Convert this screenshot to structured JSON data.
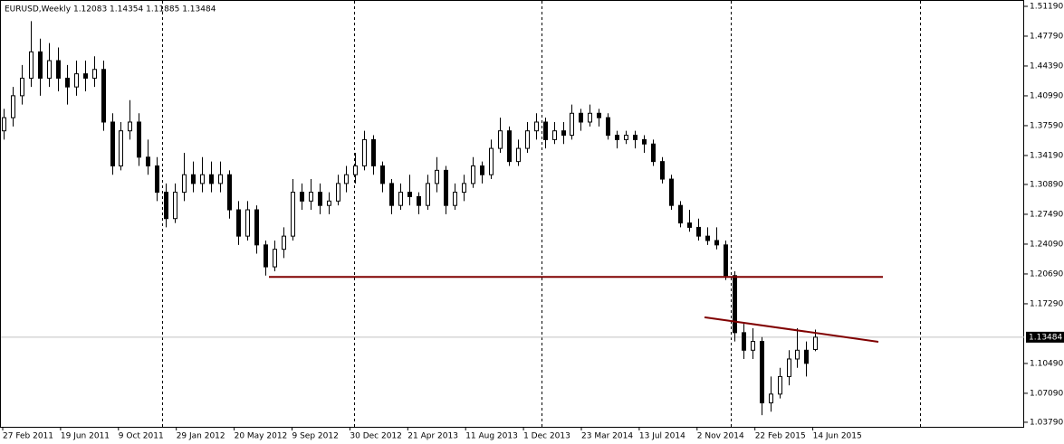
{
  "chart_data": {
    "type": "candlestick",
    "title": "EURUSD,Weekly  1.12083 1.14354 1.11885 1.13484",
    "ylim": [
      1.0327,
      1.5191
    ],
    "yticks": [
      {
        "value": 1.5119,
        "label": "1.51190"
      },
      {
        "value": 1.4779,
        "label": "1.47790"
      },
      {
        "value": 1.4439,
        "label": "1.44390"
      },
      {
        "value": 1.4099,
        "label": "1.40990"
      },
      {
        "value": 1.3759,
        "label": "1.37590"
      },
      {
        "value": 1.3419,
        "label": "1.34190"
      },
      {
        "value": 1.3089,
        "label": "1.30890"
      },
      {
        "value": 1.2749,
        "label": "1.27490"
      },
      {
        "value": 1.2409,
        "label": "1.24090"
      },
      {
        "value": 1.2069,
        "label": "1.20690"
      },
      {
        "value": 1.1729,
        "label": "1.17290"
      },
      {
        "value": 1.1049,
        "label": "1.10490"
      },
      {
        "value": 1.0709,
        "label": "1.07090"
      },
      {
        "value": 1.0379,
        "label": "1.03790"
      }
    ],
    "current_price": 1.13484,
    "xlabels": [
      "27 Feb 2011",
      "19 Jun 2011",
      "9 Oct 2011",
      "29 Jan 2012",
      "20 May 2012",
      "9 Sep 2012",
      "30 Dec 2012",
      "21 Apr 2013",
      "11 Aug 2013",
      "1 Dec 2013",
      "23 Mar 2014",
      "13 Jul 2014",
      "2 Nov 2014",
      "22 Feb 2015",
      "14 Jun 2015"
    ],
    "trendlines": [
      [
        1.2035,
        1.2035
      ],
      [
        1.1575,
        1.1296
      ]
    ],
    "trendline_color": "#800000",
    "candles": [
      [
        1.37,
        1.395,
        1.36,
        1.385
      ],
      [
        1.385,
        1.42,
        1.375,
        1.41
      ],
      [
        1.41,
        1.445,
        1.4,
        1.43
      ],
      [
        1.43,
        1.495,
        1.42,
        1.46
      ],
      [
        1.46,
        1.475,
        1.41,
        1.43
      ],
      [
        1.43,
        1.47,
        1.42,
        1.45
      ],
      [
        1.45,
        1.465,
        1.415,
        1.43
      ],
      [
        1.43,
        1.445,
        1.4,
        1.42
      ],
      [
        1.42,
        1.45,
        1.41,
        1.435
      ],
      [
        1.435,
        1.45,
        1.415,
        1.43
      ],
      [
        1.43,
        1.455,
        1.42,
        1.44
      ],
      [
        1.44,
        1.45,
        1.37,
        1.38
      ],
      [
        1.38,
        1.39,
        1.32,
        1.33
      ],
      [
        1.33,
        1.38,
        1.325,
        1.37
      ],
      [
        1.37,
        1.405,
        1.36,
        1.38
      ],
      [
        1.38,
        1.39,
        1.33,
        1.34
      ],
      [
        1.34,
        1.36,
        1.32,
        1.33
      ],
      [
        1.33,
        1.34,
        1.29,
        1.3
      ],
      [
        1.3,
        1.31,
        1.26,
        1.27
      ],
      [
        1.27,
        1.31,
        1.265,
        1.3
      ],
      [
        1.3,
        1.345,
        1.29,
        1.32
      ],
      [
        1.32,
        1.335,
        1.3,
        1.31
      ],
      [
        1.31,
        1.34,
        1.3,
        1.32
      ],
      [
        1.32,
        1.335,
        1.3,
        1.31
      ],
      [
        1.31,
        1.335,
        1.3,
        1.32
      ],
      [
        1.32,
        1.325,
        1.27,
        1.28
      ],
      [
        1.28,
        1.29,
        1.24,
        1.25
      ],
      [
        1.25,
        1.29,
        1.245,
        1.28
      ],
      [
        1.28,
        1.285,
        1.23,
        1.24
      ],
      [
        1.24,
        1.245,
        1.205,
        1.215
      ],
      [
        1.215,
        1.245,
        1.21,
        1.235
      ],
      [
        1.235,
        1.26,
        1.225,
        1.25
      ],
      [
        1.25,
        1.315,
        1.245,
        1.3
      ],
      [
        1.3,
        1.31,
        1.28,
        1.29
      ],
      [
        1.29,
        1.315,
        1.28,
        1.3
      ],
      [
        1.3,
        1.31,
        1.275,
        1.285
      ],
      [
        1.285,
        1.3,
        1.275,
        1.29
      ],
      [
        1.29,
        1.32,
        1.285,
        1.31
      ],
      [
        1.31,
        1.33,
        1.3,
        1.32
      ],
      [
        1.32,
        1.345,
        1.31,
        1.33
      ],
      [
        1.33,
        1.37,
        1.325,
        1.36
      ],
      [
        1.36,
        1.365,
        1.32,
        1.33
      ],
      [
        1.33,
        1.335,
        1.3,
        1.31
      ],
      [
        1.31,
        1.315,
        1.275,
        1.285
      ],
      [
        1.285,
        1.31,
        1.28,
        1.3
      ],
      [
        1.3,
        1.32,
        1.285,
        1.295
      ],
      [
        1.295,
        1.3,
        1.275,
        1.285
      ],
      [
        1.285,
        1.32,
        1.28,
        1.31
      ],
      [
        1.31,
        1.34,
        1.3,
        1.325
      ],
      [
        1.325,
        1.33,
        1.275,
        1.285
      ],
      [
        1.285,
        1.31,
        1.28,
        1.3
      ],
      [
        1.3,
        1.32,
        1.29,
        1.31
      ],
      [
        1.31,
        1.34,
        1.305,
        1.33
      ],
      [
        1.33,
        1.335,
        1.31,
        1.32
      ],
      [
        1.32,
        1.36,
        1.315,
        1.35
      ],
      [
        1.35,
        1.385,
        1.345,
        1.37
      ],
      [
        1.37,
        1.375,
        1.33,
        1.335
      ],
      [
        1.335,
        1.36,
        1.33,
        1.35
      ],
      [
        1.35,
        1.38,
        1.345,
        1.37
      ],
      [
        1.37,
        1.39,
        1.36,
        1.38
      ],
      [
        1.38,
        1.385,
        1.35,
        1.36
      ],
      [
        1.36,
        1.38,
        1.355,
        1.37
      ],
      [
        1.37,
        1.38,
        1.355,
        1.365
      ],
      [
        1.365,
        1.4,
        1.36,
        1.39
      ],
      [
        1.39,
        1.395,
        1.37,
        1.38
      ],
      [
        1.38,
        1.4,
        1.375,
        1.39
      ],
      [
        1.39,
        1.395,
        1.375,
        1.385
      ],
      [
        1.385,
        1.39,
        1.36,
        1.365
      ],
      [
        1.365,
        1.37,
        1.35,
        1.36
      ],
      [
        1.36,
        1.37,
        1.355,
        1.365
      ],
      [
        1.365,
        1.37,
        1.35,
        1.36
      ],
      [
        1.36,
        1.365,
        1.345,
        1.355
      ],
      [
        1.355,
        1.36,
        1.33,
        1.335
      ],
      [
        1.335,
        1.34,
        1.31,
        1.315
      ],
      [
        1.315,
        1.32,
        1.28,
        1.285
      ],
      [
        1.285,
        1.29,
        1.26,
        1.265
      ],
      [
        1.265,
        1.28,
        1.255,
        1.26
      ],
      [
        1.26,
        1.27,
        1.245,
        1.25
      ],
      [
        1.25,
        1.26,
        1.24,
        1.245
      ],
      [
        1.245,
        1.26,
        1.235,
        1.24
      ],
      [
        1.24,
        1.245,
        1.2,
        1.205
      ],
      [
        1.205,
        1.21,
        1.13,
        1.14
      ],
      [
        1.14,
        1.15,
        1.11,
        1.12
      ],
      [
        1.12,
        1.145,
        1.11,
        1.13
      ],
      [
        1.13,
        1.135,
        1.046,
        1.06
      ],
      [
        1.06,
        1.09,
        1.05,
        1.07
      ],
      [
        1.07,
        1.1,
        1.065,
        1.09
      ],
      [
        1.09,
        1.12,
        1.08,
        1.11
      ],
      [
        1.11,
        1.145,
        1.1,
        1.12
      ],
      [
        1.12,
        1.13,
        1.09,
        1.105
      ],
      [
        1.12083,
        1.14354,
        1.11885,
        1.13484
      ]
    ]
  }
}
